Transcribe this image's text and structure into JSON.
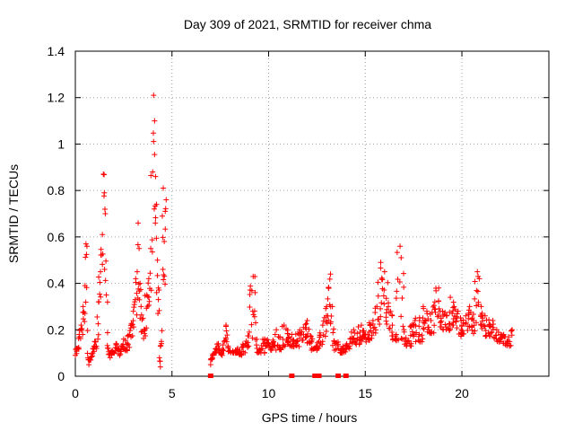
{
  "chart_data": {
    "type": "scatter",
    "title": "Day 309 of 2021, SRMTID for receiver chma",
    "xlabel": "GPS time / hours",
    "ylabel": "SRMTID / TECUs",
    "xlim": [
      0,
      24.5
    ],
    "ylim": [
      0,
      1.4
    ],
    "xticks": [
      0,
      5,
      10,
      15,
      20
    ],
    "xtick_labels": [
      "0",
      "5",
      "10",
      "15",
      "20"
    ],
    "yticks": [
      0,
      0.2,
      0.4,
      0.6,
      0.8,
      1.0,
      1.2,
      1.4
    ],
    "ytick_labels": [
      "0",
      "0.2",
      "0.4",
      "0.6",
      "0.8",
      "1",
      "1.2",
      "1.4"
    ],
    "grid": true,
    "marker": "+",
    "color": "#ff0000",
    "series": [
      {
        "name": "SRMTID",
        "x": [
          0.0,
          0.1,
          0.2,
          0.3,
          0.4,
          0.5,
          0.55,
          0.6,
          0.65,
          0.7,
          0.8,
          0.9,
          1.0,
          1.1,
          1.2,
          1.3,
          1.4,
          1.45,
          1.5,
          1.55,
          1.6,
          1.7,
          1.8,
          1.9,
          2.0,
          2.1,
          2.2,
          2.3,
          2.4,
          2.5,
          2.6,
          2.7,
          2.8,
          2.9,
          3.0,
          3.1,
          3.2,
          3.25,
          3.3,
          3.35,
          3.4,
          3.5,
          3.6,
          3.7,
          3.8,
          3.9,
          4.0,
          4.05,
          4.1,
          4.15,
          4.2,
          4.25,
          4.3,
          4.35,
          4.4,
          4.45,
          4.5,
          4.55,
          4.6,
          4.65,
          4.7,
          7.0,
          7.1,
          7.2,
          7.3,
          7.4,
          7.5,
          7.6,
          7.7,
          7.8,
          7.9,
          8.0,
          8.2,
          8.4,
          8.6,
          8.8,
          9.0,
          9.2,
          9.3,
          9.4,
          9.6,
          9.8,
          10.0,
          10.2,
          10.4,
          10.6,
          10.8,
          11.0,
          11.2,
          11.4,
          11.6,
          11.8,
          12.0,
          12.2,
          12.4,
          12.6,
          12.8,
          13.0,
          13.1,
          13.2,
          13.3,
          13.4,
          13.6,
          13.8,
          14.0,
          14.2,
          14.4,
          14.6,
          14.8,
          15.0,
          15.2,
          15.4,
          15.6,
          15.8,
          16.0,
          16.2,
          16.4,
          16.6,
          16.8,
          17.0,
          17.2,
          17.4,
          17.6,
          17.8,
          18.0,
          18.2,
          18.4,
          18.6,
          18.8,
          19.0,
          19.2,
          19.4,
          19.6,
          19.8,
          20.0,
          20.2,
          20.4,
          20.6,
          20.8,
          20.9,
          21.0,
          21.2,
          21.4,
          21.6,
          21.8,
          22.0,
          22.2,
          22.4,
          22.6
        ],
        "y": [
          0.09,
          0.12,
          0.18,
          0.22,
          0.3,
          0.39,
          0.57,
          0.56,
          0.08,
          0.05,
          0.07,
          0.1,
          0.15,
          0.12,
          0.32,
          0.45,
          0.61,
          0.87,
          0.79,
          0.7,
          0.35,
          0.12,
          0.08,
          0.11,
          0.1,
          0.14,
          0.12,
          0.09,
          0.13,
          0.16,
          0.11,
          0.14,
          0.18,
          0.22,
          0.28,
          0.33,
          0.45,
          0.66,
          0.55,
          0.4,
          0.3,
          0.25,
          0.2,
          0.35,
          0.42,
          0.55,
          0.88,
          1.21,
          1.1,
          0.86,
          0.74,
          0.5,
          0.38,
          0.08,
          0.04,
          0.15,
          0.69,
          0.81,
          0.58,
          0.71,
          0.76,
          0.05,
          0.08,
          0.1,
          0.12,
          0.14,
          0.1,
          0.09,
          0.15,
          0.22,
          0.13,
          0.11,
          0.1,
          0.12,
          0.09,
          0.14,
          0.19,
          0.43,
          0.36,
          0.12,
          0.1,
          0.16,
          0.14,
          0.12,
          0.2,
          0.12,
          0.22,
          0.15,
          0.18,
          0.14,
          0.19,
          0.21,
          0.24,
          0.17,
          0.12,
          0.15,
          0.22,
          0.3,
          0.38,
          0.44,
          0.3,
          0.15,
          0.12,
          0.1,
          0.13,
          0.14,
          0.2,
          0.16,
          0.22,
          0.18,
          0.19,
          0.24,
          0.3,
          0.49,
          0.45,
          0.3,
          0.22,
          0.18,
          0.56,
          0.2,
          0.15,
          0.22,
          0.25,
          0.18,
          0.3,
          0.27,
          0.24,
          0.32,
          0.38,
          0.28,
          0.26,
          0.34,
          0.3,
          0.28,
          0.22,
          0.26,
          0.3,
          0.24,
          0.45,
          0.42,
          0.3,
          0.26,
          0.22,
          0.24,
          0.2,
          0.18,
          0.17,
          0.15,
          0.2
        ],
        "zero_points": [
          7.0,
          11.2,
          12.4,
          12.5,
          12.6,
          13.6,
          14.0
        ]
      }
    ]
  }
}
